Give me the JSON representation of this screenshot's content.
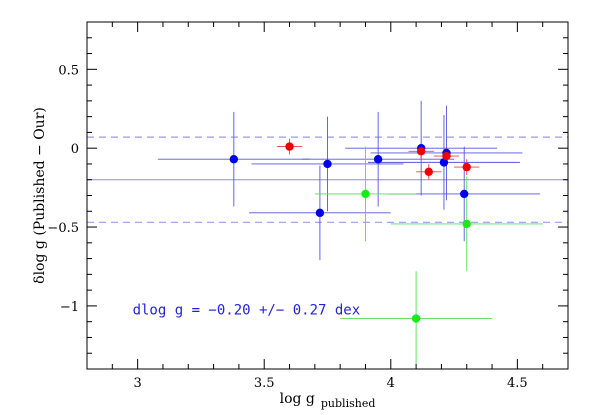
{
  "chart_data": {
    "type": "scatter",
    "title": "",
    "xlabel": "log g",
    "xlabel_subscript": "published",
    "ylabel": "δlog g (Published − Our)",
    "xlim": [
      2.8,
      4.7
    ],
    "ylim": [
      -1.4,
      0.8
    ],
    "xticks": [
      3,
      3.5,
      4,
      4.5
    ],
    "xtick_labels": [
      "3",
      "3.5",
      "4",
      "4.5"
    ],
    "yticks": [
      -1,
      -0.5,
      0,
      0.5
    ],
    "ytick_labels": [
      "−1",
      "−0.5",
      "0",
      "0.5"
    ],
    "grid": false,
    "reference_lines": {
      "mean": -0.2,
      "upper": 0.07,
      "lower": -0.47,
      "mean_color": "#8888ee",
      "band_color": "#9999ee"
    },
    "annotation": "dlog g = −0.20 +/− 0.27 dex",
    "series": [
      {
        "color": "#0000ee",
        "errcolor": "#5555dd",
        "points": [
          {
            "x": 3.38,
            "y": -0.07,
            "xerr": 0.3,
            "yerr": 0.3
          },
          {
            "x": 3.72,
            "y": -0.41,
            "xerr": 0.28,
            "yerr": 0.3
          },
          {
            "x": 3.75,
            "y": -0.1,
            "xerr": 0.3,
            "yerr": 0.3
          },
          {
            "x": 3.95,
            "y": -0.07,
            "xerr": 0.3,
            "yerr": 0.3
          },
          {
            "x": 4.12,
            "y": 0.0,
            "xerr": 0.3,
            "yerr": 0.3
          },
          {
            "x": 4.21,
            "y": -0.09,
            "xerr": 0.3,
            "yerr": 0.3
          },
          {
            "x": 4.22,
            "y": -0.03,
            "xerr": 0.3,
            "yerr": 0.3
          },
          {
            "x": 4.29,
            "y": -0.29,
            "xerr": 0.3,
            "yerr": 0.3
          }
        ]
      },
      {
        "color": "#ee0000",
        "errcolor": "#ee4444",
        "points": [
          {
            "x": 3.6,
            "y": 0.01,
            "xerr": 0.05,
            "yerr": 0.05
          },
          {
            "x": 4.12,
            "y": -0.02,
            "xerr": 0.05,
            "yerr": 0.05
          },
          {
            "x": 4.15,
            "y": -0.15,
            "xerr": 0.05,
            "yerr": 0.05
          },
          {
            "x": 4.22,
            "y": -0.05,
            "xerr": 0.05,
            "yerr": 0.05
          },
          {
            "x": 4.3,
            "y": -0.12,
            "xerr": 0.05,
            "yerr": 0.05
          }
        ]
      },
      {
        "color": "#11ee11",
        "errcolor": "#55dd55",
        "points": [
          {
            "x": 3.9,
            "y": -0.29,
            "xerr": 0.2,
            "yerr": 0.3
          },
          {
            "x": 4.3,
            "y": -0.48,
            "xerr": 0.3,
            "yerr": 0.3
          },
          {
            "x": 4.1,
            "y": -1.08,
            "xerr": 0.3,
            "yerr": 0.3
          }
        ]
      }
    ]
  }
}
